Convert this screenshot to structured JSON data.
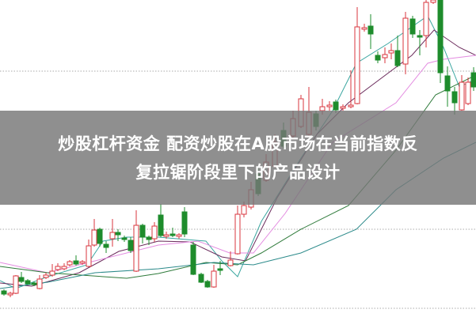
{
  "headline": {
    "line1": "炒股杠杆资金 配资炒股在A股市场在当前指数反",
    "line2": "复拉锯阶段里下的产品设计"
  },
  "colors": {
    "up": "#d9363e",
    "down": "#1e8c2c",
    "overlay": "#767676",
    "text": "#ffffff"
  }
}
